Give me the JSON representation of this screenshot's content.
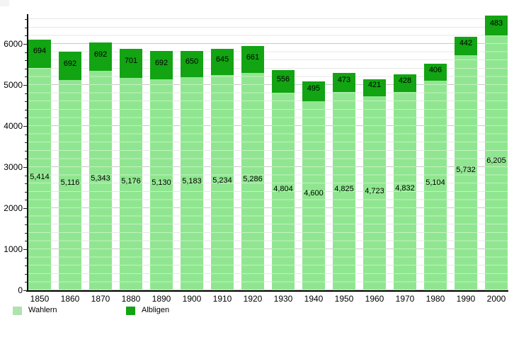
{
  "chart_data": {
    "type": "bar",
    "stacked": true,
    "title": "",
    "xlabel": "",
    "ylabel": "",
    "categories": [
      "1850",
      "1860",
      "1870",
      "1880",
      "1890",
      "1900",
      "1910",
      "1920",
      "1930",
      "1940",
      "1950",
      "1960",
      "1970",
      "1980",
      "1990",
      "2000"
    ],
    "series": [
      {
        "name": "Wahlern",
        "color": "#90e690",
        "values": [
          5414,
          5116,
          5343,
          5176,
          5130,
          5183,
          5234,
          5286,
          4804,
          4600,
          4825,
          4723,
          4832,
          5104,
          5732,
          6205
        ],
        "labels": [
          "5,414",
          "5,116",
          "5,343",
          "5,176",
          "5,130",
          "5,183",
          "5,234",
          "5,286",
          "4,804",
          "4,600",
          "4,825",
          "4,723",
          "4,832",
          "5,104",
          "5,732",
          "6,205"
        ]
      },
      {
        "name": "Albligen",
        "color": "#12a412",
        "values": [
          694,
          692,
          692,
          701,
          692,
          650,
          645,
          661,
          556,
          495,
          473,
          421,
          428,
          406,
          442,
          483
        ],
        "labels": [
          "694",
          "692",
          "692",
          "701",
          "692",
          "650",
          "645",
          "661",
          "556",
          "495",
          "473",
          "421",
          "428",
          "406",
          "442",
          "483"
        ]
      }
    ],
    "ylim": [
      0,
      6724
    ],
    "yticks": [
      0,
      1000,
      2000,
      3000,
      4000,
      5000,
      6000
    ],
    "ytick_labels": [
      "0",
      "1000",
      "2000",
      "3000",
      "4000",
      "5000",
      "6000"
    ],
    "minor_grid_step": 200,
    "grid": "on",
    "legend_position": "bottom-left"
  },
  "legend": {
    "items": [
      {
        "label": "Wahlern",
        "color": "#afe2af"
      },
      {
        "label": "Albligen",
        "color": "#12a412"
      }
    ]
  },
  "colors": {
    "background": "#ffffff",
    "axis": "#000000",
    "gridline_major": "#c9c9c9",
    "gridline_minor": "#e7e7e7",
    "bar_wahlern": "#90e690",
    "bar_albligen": "#12a412",
    "text": "#000000"
  }
}
